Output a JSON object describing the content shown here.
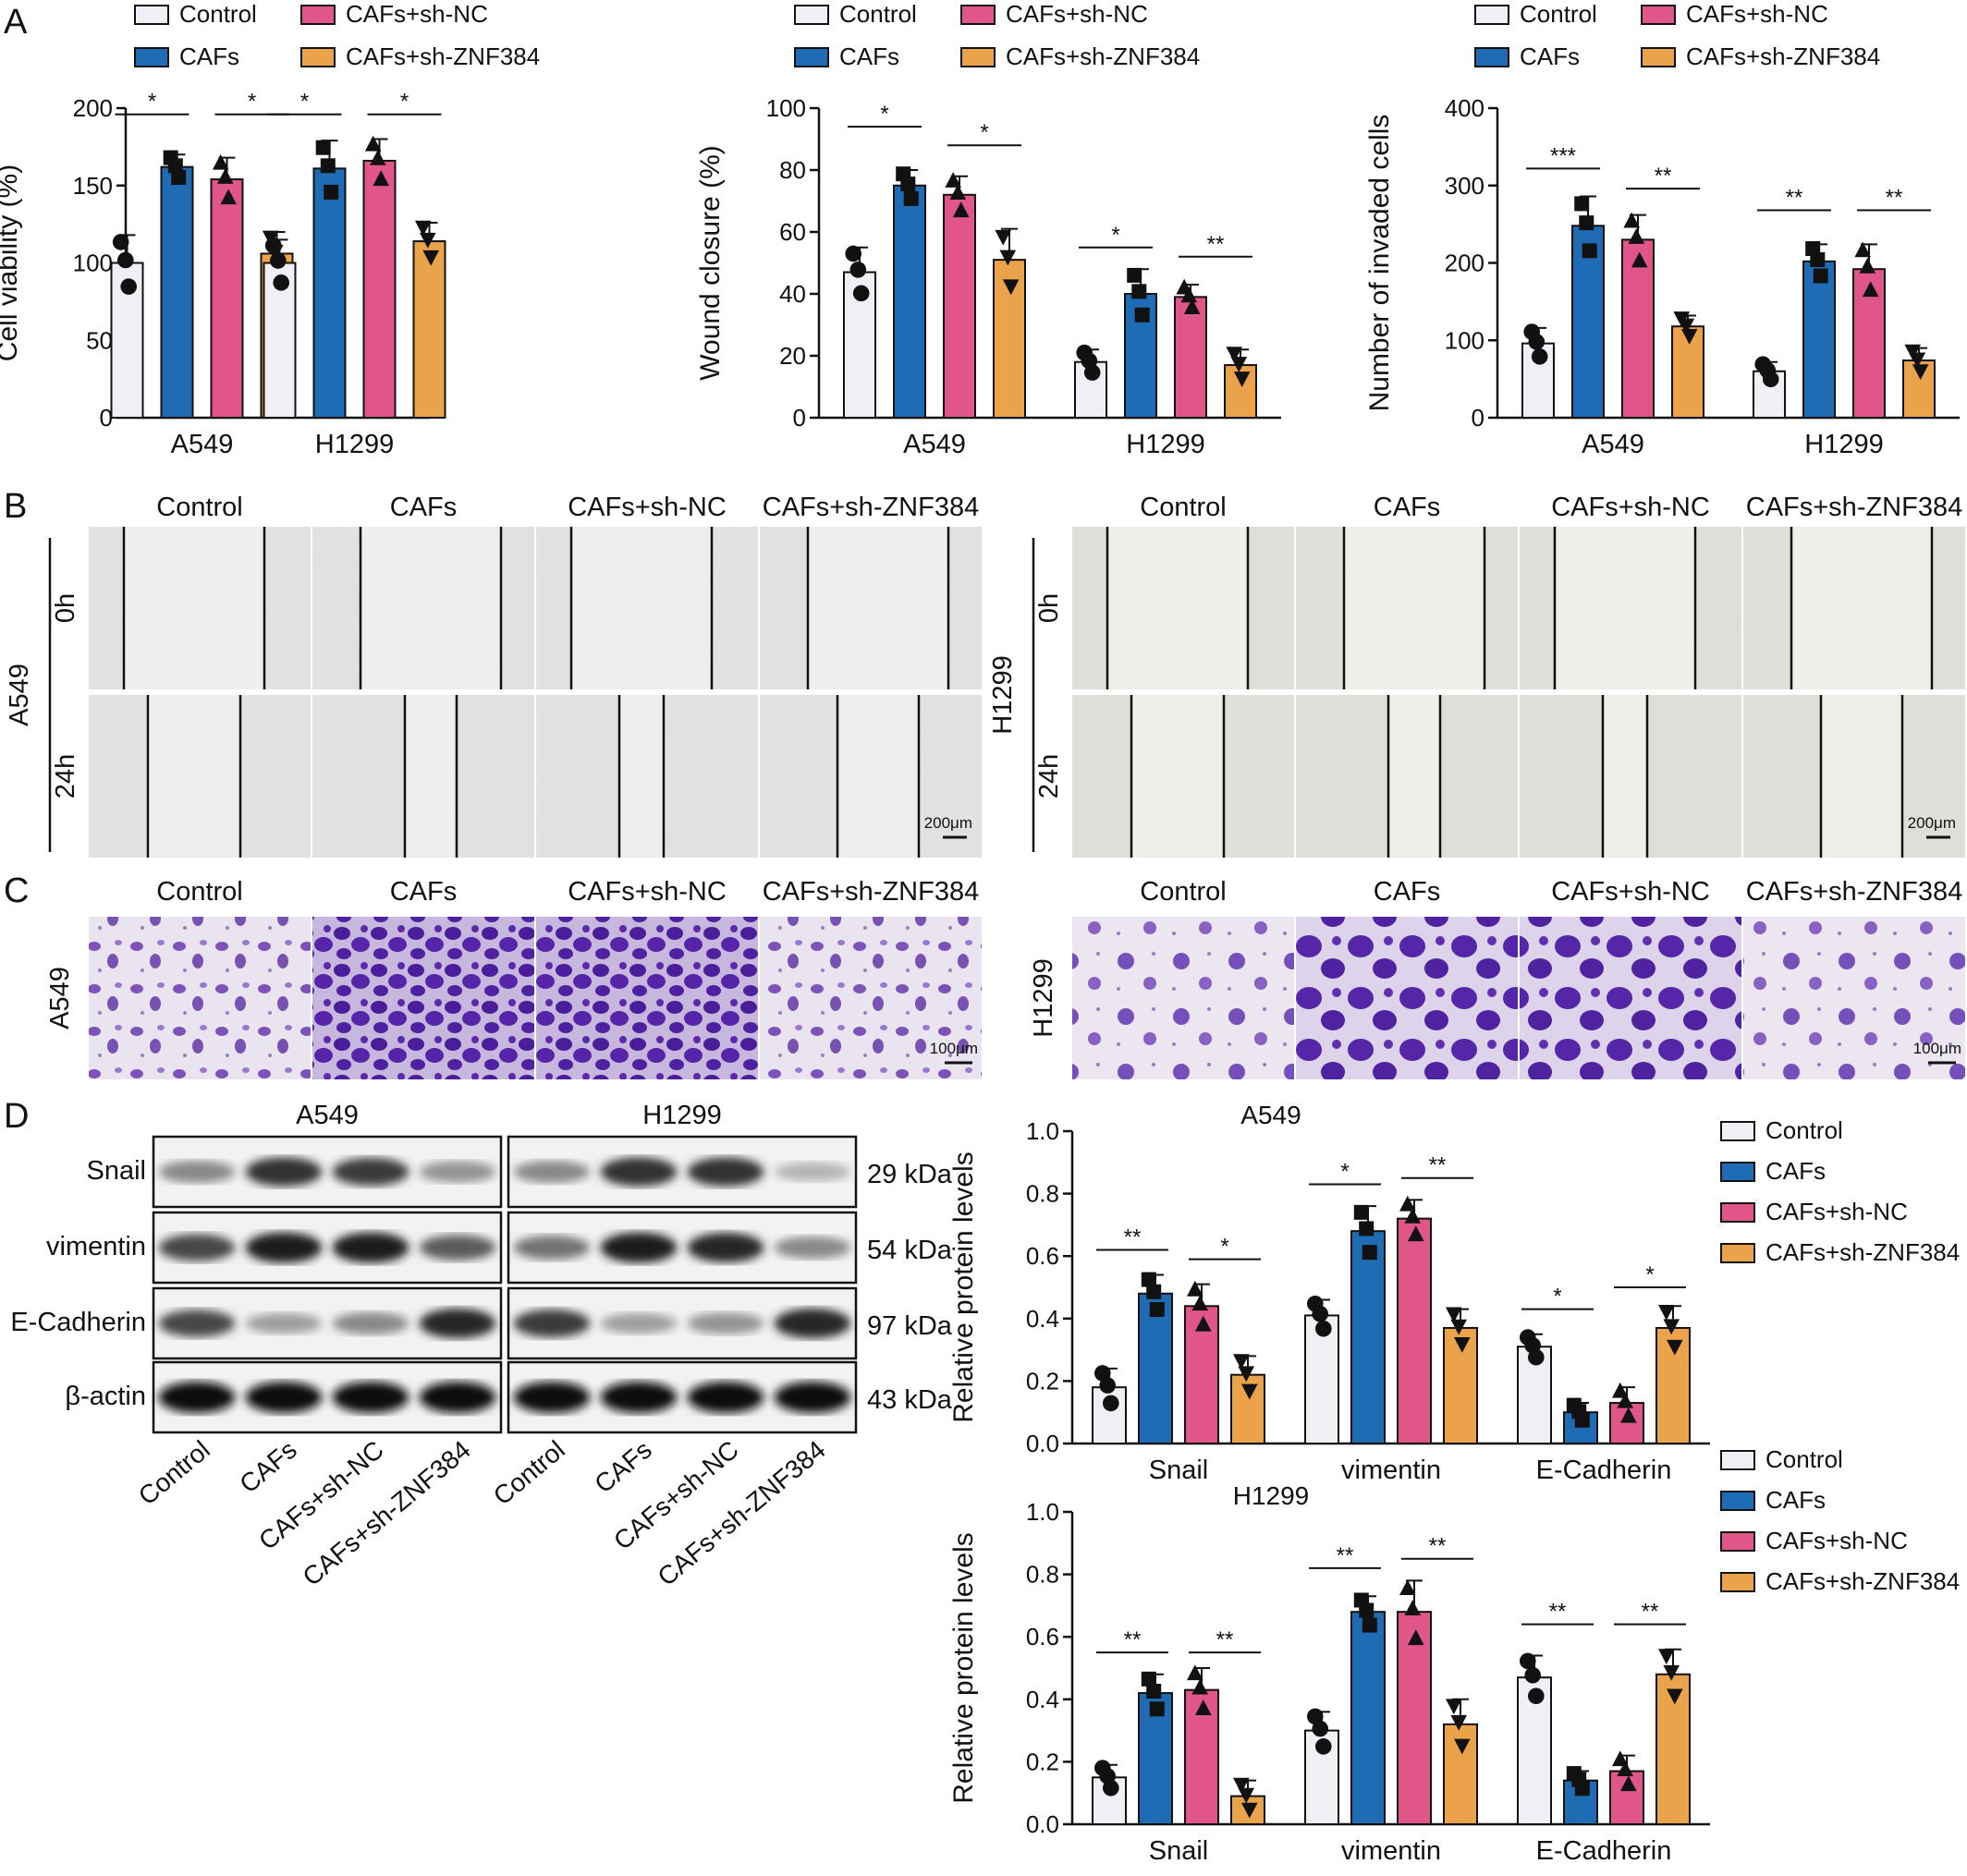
{
  "colors": {
    "control": "#eef0f5",
    "cafs": "#1f6cb5",
    "shnc": "#e0558a",
    "shznf": "#eaa24b",
    "text": "#111111"
  },
  "legend": [
    "Control",
    "CAFs",
    "CAFs+sh-NC",
    "CAFs+sh-ZNF384"
  ],
  "panel_letters": {
    "a": "A",
    "b": "B",
    "c": "C",
    "d": "D"
  },
  "chart_data": [
    {
      "id": "viability",
      "type": "bar",
      "ylabel": "Cell viability (%)",
      "ylim": [
        0,
        200
      ],
      "yticks": [
        "0",
        "50",
        "100",
        "150",
        "200"
      ],
      "categories": [
        "A549",
        "H1299"
      ],
      "series": [
        {
          "name": "Control",
          "values": [
            100,
            100
          ],
          "err": [
            18,
            15
          ],
          "marker": "circle"
        },
        {
          "name": "CAFs",
          "values": [
            162,
            161
          ],
          "err": [
            8,
            18
          ],
          "marker": "square"
        },
        {
          "name": "CAFs+sh-NC",
          "values": [
            154,
            166
          ],
          "err": [
            14,
            14
          ],
          "marker": "triangle"
        },
        {
          "name": "CAFs+sh-ZNF384",
          "values": [
            106,
            114
          ],
          "err": [
            14,
            12
          ],
          "marker": "triangle-down"
        }
      ],
      "signif": [
        {
          "cat": 0,
          "from": 0,
          "to": 1,
          "label": "*",
          "y": 196
        },
        {
          "cat": 0,
          "from": 2,
          "to": 3,
          "label": "*",
          "y": 196
        },
        {
          "cat": 1,
          "from": 0,
          "to": 1,
          "label": "*",
          "y": 196
        },
        {
          "cat": 1,
          "from": 2,
          "to": 3,
          "label": "*",
          "y": 196
        }
      ]
    },
    {
      "id": "wound",
      "type": "bar",
      "ylabel": "Wound closure (%)",
      "ylim": [
        0,
        100
      ],
      "yticks": [
        "0",
        "20",
        "40",
        "60",
        "80",
        "100"
      ],
      "categories": [
        "A549",
        "H1299"
      ],
      "series": [
        {
          "name": "Control",
          "values": [
            47,
            18
          ],
          "err": [
            8,
            4
          ],
          "marker": "circle"
        },
        {
          "name": "CAFs",
          "values": [
            75,
            40
          ],
          "err": [
            5,
            8
          ],
          "marker": "square"
        },
        {
          "name": "CAFs+sh-NC",
          "values": [
            72,
            39
          ],
          "err": [
            6,
            4
          ],
          "marker": "triangle"
        },
        {
          "name": "CAFs+sh-ZNF384",
          "values": [
            51,
            17
          ],
          "err": [
            10,
            5
          ],
          "marker": "triangle-down"
        }
      ],
      "signif": [
        {
          "cat": 0,
          "from": 0,
          "to": 1,
          "label": "*",
          "y": 94
        },
        {
          "cat": 0,
          "from": 2,
          "to": 3,
          "label": "*",
          "y": 88
        },
        {
          "cat": 1,
          "from": 0,
          "to": 1,
          "label": "*",
          "y": 55
        },
        {
          "cat": 1,
          "from": 2,
          "to": 3,
          "label": "**",
          "y": 52
        }
      ]
    },
    {
      "id": "invaded",
      "type": "bar",
      "ylabel": "Number of invaded cells",
      "ylim": [
        0,
        400
      ],
      "yticks": [
        "0",
        "100",
        "200",
        "300",
        "400"
      ],
      "categories": [
        "A549",
        "H1299"
      ],
      "series": [
        {
          "name": "Control",
          "values": [
            96,
            60
          ],
          "err": [
            20,
            12
          ],
          "marker": "circle"
        },
        {
          "name": "CAFs",
          "values": [
            248,
            202
          ],
          "err": [
            38,
            22
          ],
          "marker": "square"
        },
        {
          "name": "CAFs+sh-NC",
          "values": [
            230,
            192
          ],
          "err": [
            32,
            32
          ],
          "marker": "triangle"
        },
        {
          "name": "CAFs+sh-ZNF384",
          "values": [
            118,
            74
          ],
          "err": [
            14,
            16
          ],
          "marker": "triangle-down"
        }
      ],
      "signif": [
        {
          "cat": 0,
          "from": 0,
          "to": 1,
          "label": "***",
          "y": 322
        },
        {
          "cat": 0,
          "from": 2,
          "to": 3,
          "label": "**",
          "y": 296
        },
        {
          "cat": 1,
          "from": 0,
          "to": 1,
          "label": "**",
          "y": 268
        },
        {
          "cat": 1,
          "from": 2,
          "to": 3,
          "label": "**",
          "y": 268
        }
      ]
    },
    {
      "id": "proteinA549",
      "type": "bar",
      "title": "A549",
      "ylabel": "Relative protein levels",
      "ylim": [
        0,
        1.0
      ],
      "yticks": [
        "0.0",
        "0.2",
        "0.4",
        "0.6",
        "0.8",
        "1.0"
      ],
      "categories": [
        "Snail",
        "vimentin",
        "E-Cadherin"
      ],
      "series": [
        {
          "name": "Control",
          "values": [
            0.18,
            0.41,
            0.31
          ],
          "err": [
            0.06,
            0.05,
            0.04
          ],
          "marker": "circle"
        },
        {
          "name": "CAFs",
          "values": [
            0.48,
            0.68,
            0.1
          ],
          "err": [
            0.06,
            0.08,
            0.03
          ],
          "marker": "square"
        },
        {
          "name": "CAFs+sh-NC",
          "values": [
            0.44,
            0.72,
            0.13
          ],
          "err": [
            0.07,
            0.06,
            0.05
          ],
          "marker": "triangle"
        },
        {
          "name": "CAFs+sh-ZNF384",
          "values": [
            0.22,
            0.37,
            0.37
          ],
          "err": [
            0.06,
            0.06,
            0.07
          ],
          "marker": "triangle-down"
        }
      ],
      "signif": [
        {
          "cat": 0,
          "from": 0,
          "to": 1,
          "label": "**",
          "y": 0.62
        },
        {
          "cat": 0,
          "from": 2,
          "to": 3,
          "label": "*",
          "y": 0.59
        },
        {
          "cat": 1,
          "from": 0,
          "to": 1,
          "label": "*",
          "y": 0.83
        },
        {
          "cat": 1,
          "from": 2,
          "to": 3,
          "label": "**",
          "y": 0.85
        },
        {
          "cat": 2,
          "from": 0,
          "to": 1,
          "label": "*",
          "y": 0.43
        },
        {
          "cat": 2,
          "from": 2,
          "to": 3,
          "label": "*",
          "y": 0.5
        }
      ]
    },
    {
      "id": "proteinH1299",
      "type": "bar",
      "title": "H1299",
      "ylabel": "Relative protein levels",
      "ylim": [
        0,
        1.0
      ],
      "yticks": [
        "0.0",
        "0.2",
        "0.4",
        "0.6",
        "0.8",
        "1.0"
      ],
      "categories": [
        "Snail",
        "vimentin",
        "E-Cadherin"
      ],
      "series": [
        {
          "name": "Control",
          "values": [
            0.15,
            0.3,
            0.47
          ],
          "err": [
            0.04,
            0.06,
            0.07
          ],
          "marker": "circle"
        },
        {
          "name": "CAFs",
          "values": [
            0.42,
            0.68,
            0.14
          ],
          "err": [
            0.06,
            0.05,
            0.03
          ],
          "marker": "square"
        },
        {
          "name": "CAFs+sh-NC",
          "values": [
            0.43,
            0.68,
            0.17
          ],
          "err": [
            0.07,
            0.1,
            0.05
          ],
          "marker": "triangle"
        },
        {
          "name": "CAFs+sh-ZNF384",
          "values": [
            0.09,
            0.32,
            0.48
          ],
          "err": [
            0.05,
            0.08,
            0.08
          ],
          "marker": "triangle-down"
        }
      ],
      "signif": [
        {
          "cat": 0,
          "from": 0,
          "to": 1,
          "label": "**",
          "y": 0.55
        },
        {
          "cat": 0,
          "from": 2,
          "to": 3,
          "label": "**",
          "y": 0.55
        },
        {
          "cat": 1,
          "from": 0,
          "to": 1,
          "label": "**",
          "y": 0.82
        },
        {
          "cat": 1,
          "from": 2,
          "to": 3,
          "label": "**",
          "y": 0.85
        },
        {
          "cat": 2,
          "from": 0,
          "to": 1,
          "label": "**",
          "y": 0.64
        },
        {
          "cat": 2,
          "from": 2,
          "to": 3,
          "label": "**",
          "y": 0.64
        }
      ]
    }
  ],
  "panelB": {
    "groups": [
      "Control",
      "CAFs",
      "CAFs+sh-NC",
      "CAFs+sh-ZNF384"
    ],
    "cell_lines": [
      "A549",
      "H1299"
    ],
    "times": [
      "0h",
      "24h"
    ],
    "scale": "200μm"
  },
  "panelC": {
    "groups": [
      "Control",
      "CAFs",
      "CAFs+sh-NC",
      "CAFs+sh-ZNF384"
    ],
    "cell_lines": [
      "A549",
      "H1299"
    ],
    "scale": "100μm"
  },
  "panelD": {
    "blot_titles": [
      "A549",
      "H1299"
    ],
    "proteins": [
      "Snail",
      "vimentin",
      "E-Cadherin",
      "β-actin"
    ],
    "kda": [
      "29 kDa",
      "54 kDa",
      "97 kDa",
      "43 kDa"
    ],
    "lanes": [
      "Control",
      "CAFs",
      "CAFs+sh-NC",
      "CAFs+sh-ZNF384"
    ],
    "bands": {
      "A549": [
        [
          0.45,
          0.85,
          0.8,
          0.4
        ],
        [
          0.75,
          0.95,
          0.95,
          0.65
        ],
        [
          0.75,
          0.35,
          0.45,
          0.9
        ],
        [
          1,
          1,
          1,
          1
        ]
      ],
      "H1299": [
        [
          0.45,
          0.85,
          0.85,
          0.25
        ],
        [
          0.55,
          0.95,
          0.9,
          0.45
        ],
        [
          0.8,
          0.35,
          0.4,
          0.9
        ],
        [
          1,
          1,
          1,
          1
        ]
      ]
    }
  }
}
